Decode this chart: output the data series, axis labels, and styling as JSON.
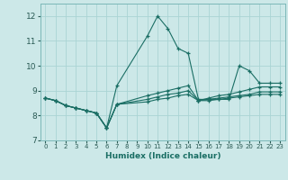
{
  "title": "",
  "xlabel": "Humidex (Indice chaleur)",
  "bg_color": "#cce8e8",
  "grid_color": "#aad4d4",
  "line_color": "#1a6e64",
  "xlim": [
    -0.5,
    23.5
  ],
  "ylim": [
    7,
    12.5
  ],
  "yticks": [
    7,
    8,
    9,
    10,
    11,
    12
  ],
  "xticks": [
    0,
    1,
    2,
    3,
    4,
    5,
    6,
    7,
    8,
    9,
    10,
    11,
    12,
    13,
    14,
    15,
    16,
    17,
    18,
    19,
    20,
    21,
    22,
    23
  ],
  "lines": [
    {
      "x": [
        0,
        1,
        2,
        3,
        4,
        5,
        6,
        7,
        10,
        11,
        12,
        13,
        14,
        15,
        16,
        17,
        18,
        19,
        20,
        21,
        22,
        23
      ],
      "y": [
        8.7,
        8.6,
        8.4,
        8.3,
        8.2,
        8.1,
        7.5,
        9.2,
        11.2,
        12.0,
        11.5,
        10.7,
        10.5,
        8.65,
        8.65,
        8.65,
        8.65,
        10.0,
        9.8,
        9.3,
        9.3,
        9.3
      ]
    },
    {
      "x": [
        0,
        1,
        2,
        3,
        4,
        5,
        6,
        7,
        10,
        11,
        12,
        13,
        14,
        15,
        16,
        17,
        18,
        19,
        20,
        21,
        22,
        23
      ],
      "y": [
        8.7,
        8.6,
        8.4,
        8.3,
        8.2,
        8.1,
        7.5,
        8.45,
        8.8,
        8.9,
        9.0,
        9.1,
        9.2,
        8.6,
        8.7,
        8.8,
        8.85,
        8.95,
        9.05,
        9.15,
        9.15,
        9.15
      ]
    },
    {
      "x": [
        0,
        1,
        2,
        3,
        4,
        5,
        6,
        7,
        10,
        11,
        12,
        13,
        14,
        15,
        16,
        17,
        18,
        19,
        20,
        21,
        22,
        23
      ],
      "y": [
        8.7,
        8.6,
        8.4,
        8.3,
        8.2,
        8.1,
        7.5,
        8.45,
        8.65,
        8.75,
        8.85,
        8.9,
        9.0,
        8.6,
        8.65,
        8.7,
        8.75,
        8.8,
        8.85,
        8.95,
        8.95,
        8.95
      ]
    },
    {
      "x": [
        0,
        1,
        2,
        3,
        4,
        5,
        6,
        7,
        10,
        11,
        12,
        13,
        14,
        15,
        16,
        17,
        18,
        19,
        20,
        21,
        22,
        23
      ],
      "y": [
        8.7,
        8.6,
        8.4,
        8.3,
        8.2,
        8.1,
        7.5,
        8.45,
        8.55,
        8.65,
        8.7,
        8.8,
        8.85,
        8.6,
        8.6,
        8.65,
        8.7,
        8.75,
        8.8,
        8.85,
        8.85,
        8.85
      ]
    }
  ]
}
